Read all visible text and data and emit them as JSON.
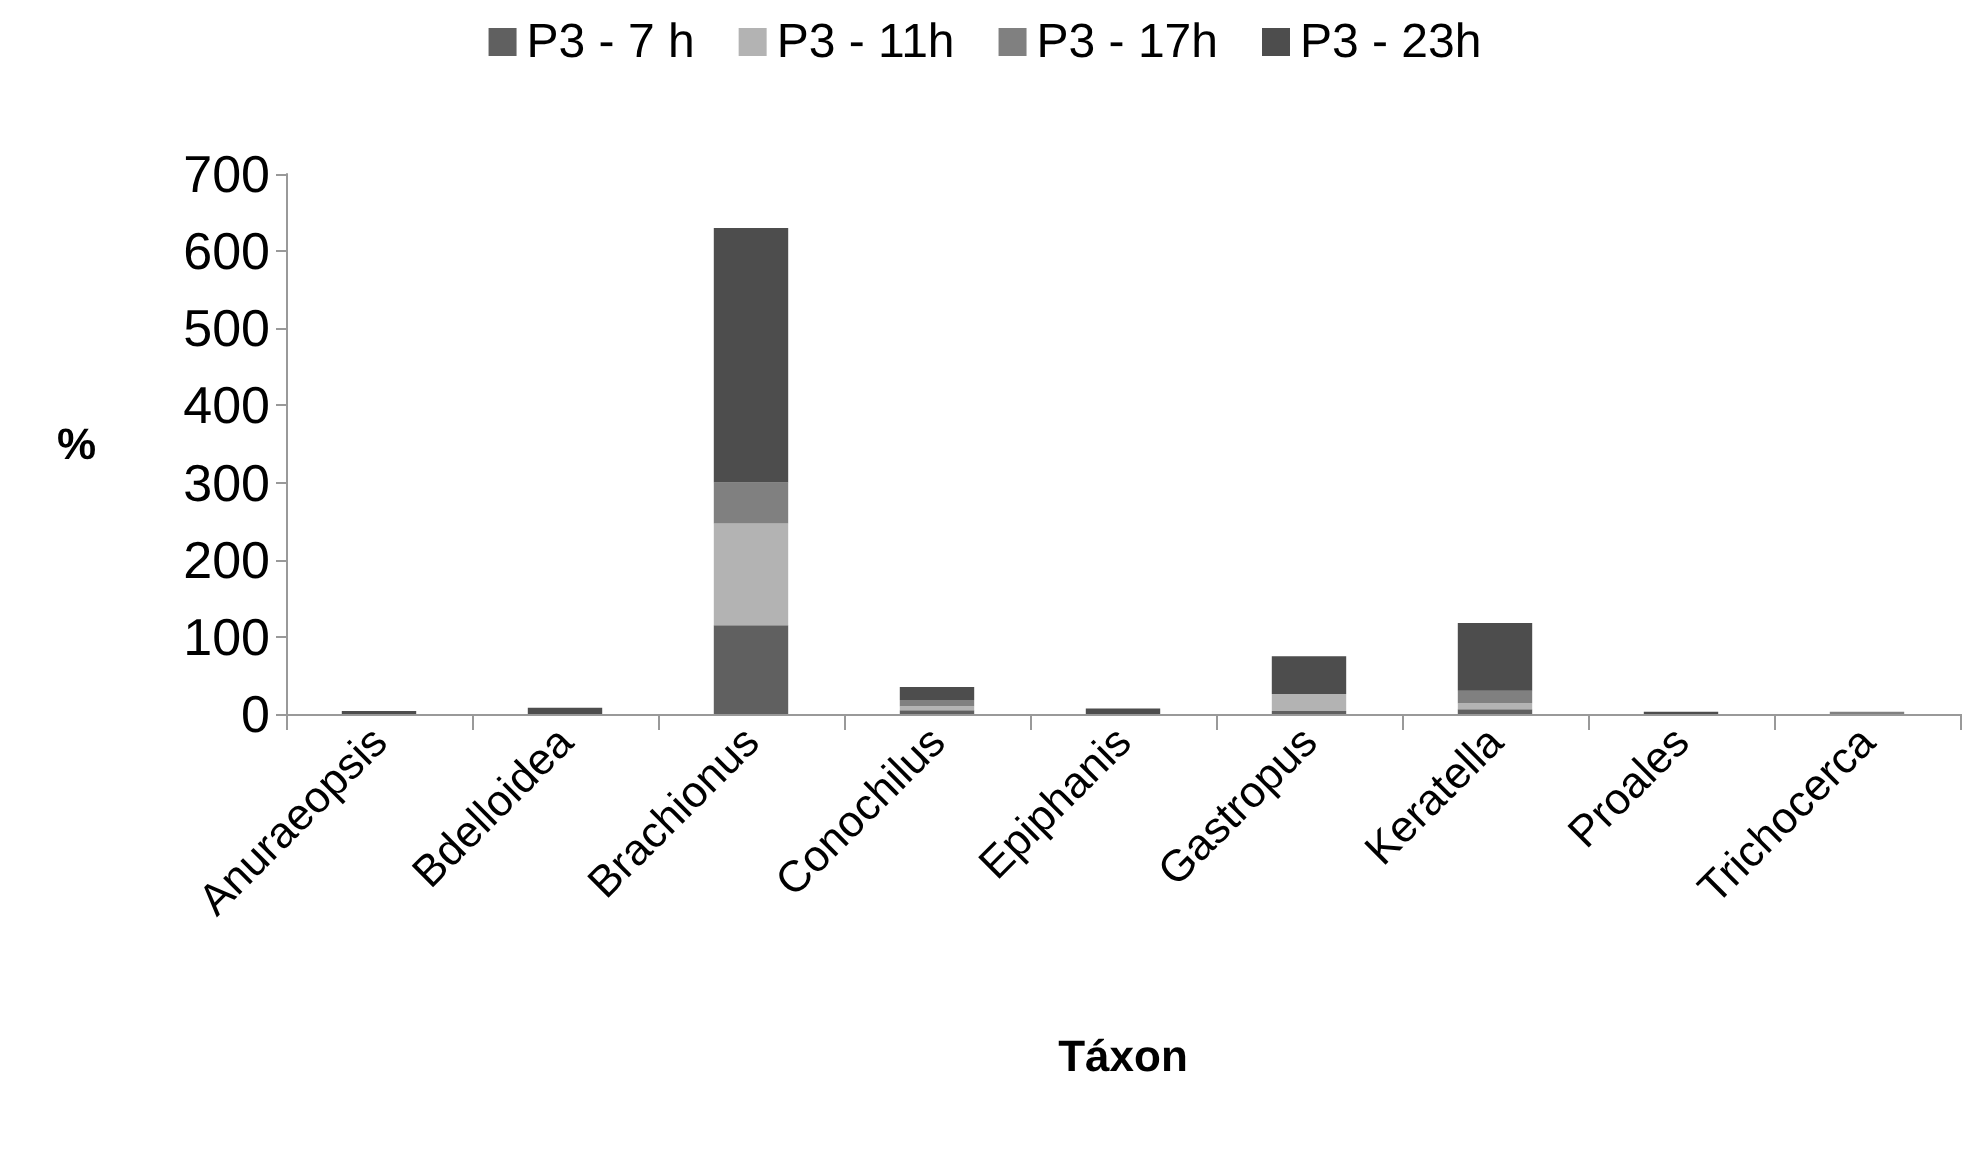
{
  "chart_data": {
    "type": "bar",
    "stacked": true,
    "xlabel": "Táxon",
    "ylabel": "%",
    "categories": [
      "Anuraeopsis",
      "Bdelloidea",
      "Brachionus",
      "Conochilus",
      "Epiphanis",
      "Gastropus",
      "Keratella",
      "Proales",
      "Trichocerca"
    ],
    "series": [
      {
        "name": "P3 - 7 h",
        "color": "#606060",
        "values": [
          null,
          null,
          115,
          5,
          null,
          4,
          6,
          null,
          null
        ]
      },
      {
        "name": "P3 - 11h",
        "color": "#b3b3b3",
        "values": [
          null,
          null,
          132,
          5,
          null,
          22,
          8,
          null,
          null
        ]
      },
      {
        "name": "P3 - 17h",
        "color": "#808080",
        "values": [
          null,
          null,
          53,
          8,
          null,
          null,
          16,
          null,
          3
        ]
      },
      {
        "name": "P3 - 23h",
        "color": "#4d4d4d",
        "values": [
          4,
          8,
          330,
          17,
          7,
          49,
          88,
          3,
          null
        ]
      }
    ],
    "ylim": [
      0,
      700
    ],
    "yticks": [
      0,
      100,
      200,
      300,
      400,
      500,
      600,
      700
    ],
    "grid": false,
    "legend": "top"
  }
}
